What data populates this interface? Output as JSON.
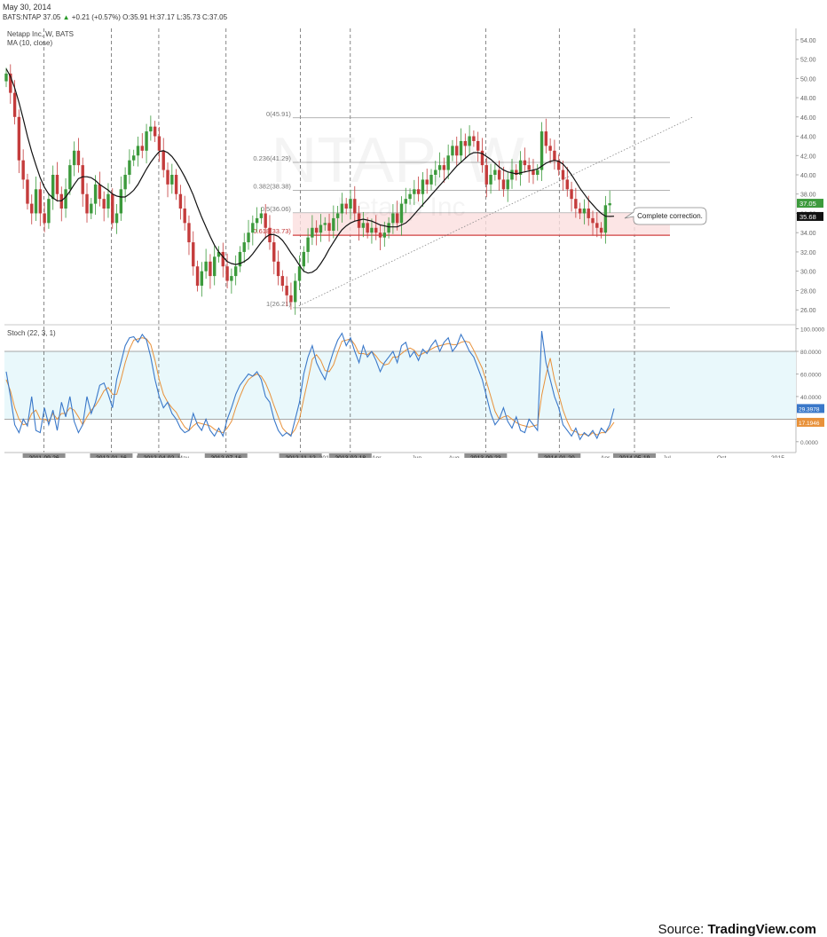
{
  "header": {
    "date": "May 30, 2014",
    "symbol": "BATS:NTAP",
    "price": "37.05",
    "change": "+0.21 (+0.57%)",
    "ohlc": "O:35.91 H:37.17 L:35.73 C:37.05"
  },
  "watermark": {
    "ticker": "NTAP, W",
    "name": "Netapp Inc"
  },
  "source": {
    "prefix": "Source: ",
    "brand": "TradingView.com"
  },
  "colors": {
    "up": "#3c9a3c",
    "down": "#c43c3c",
    "ma": "#111111",
    "stoch_k": "#3a78c9",
    "stoch_d": "#e8913a",
    "band": "#e9f8fb",
    "zone": "#fbdede"
  },
  "chart_data": [
    {
      "type": "candlestick",
      "title": "Netapp Inc, W, BATS",
      "indicator": "MA (10, close)",
      "ylim": [
        25,
        55
      ],
      "y_ticks": [
        "54.00",
        "52.00",
        "50.00",
        "48.00",
        "46.00",
        "44.00",
        "42.00",
        "40.00",
        "38.00",
        "36.00",
        "34.00",
        "32.00",
        "30.00",
        "28.00",
        "26.00"
      ],
      "last_price": "37.05",
      "ma_value": "35.68",
      "x_labels": [
        {
          "t": 0.05,
          "text": "2011-09-26",
          "box": true
        },
        {
          "t": 0.135,
          "text": "2012-01-16",
          "box": true
        },
        {
          "t": 0.172,
          "text": "Ma",
          "box": false
        },
        {
          "t": 0.195,
          "text": "2012-04-02",
          "box": true
        },
        {
          "t": 0.226,
          "text": "May",
          "box": false
        },
        {
          "t": 0.28,
          "text": "2012-07-16",
          "box": true
        },
        {
          "t": 0.374,
          "text": "2012-11-12",
          "box": true
        },
        {
          "t": 0.406,
          "text": "2013",
          "box": false
        },
        {
          "t": 0.437,
          "text": "2013-02-18",
          "box": true
        },
        {
          "t": 0.47,
          "text": "Apr",
          "box": false
        },
        {
          "t": 0.521,
          "text": "Jun",
          "box": false
        },
        {
          "t": 0.568,
          "text": "Aug",
          "box": false
        },
        {
          "t": 0.608,
          "text": "2013-09-23",
          "box": true
        },
        {
          "t": 0.701,
          "text": "2014-01-20",
          "box": true
        },
        {
          "t": 0.759,
          "text": "Apr",
          "box": false
        },
        {
          "t": 0.796,
          "text": "2014-05-19",
          "box": true
        },
        {
          "t": 0.837,
          "text": "Jul",
          "box": false
        },
        {
          "t": 0.906,
          "text": "Oct",
          "box": false
        },
        {
          "t": 0.977,
          "text": "2015",
          "box": false
        }
      ],
      "vlines_t": [
        0.05,
        0.135,
        0.195,
        0.28,
        0.374,
        0.437,
        0.608,
        0.701,
        0.796
      ],
      "fib_levels": [
        {
          "ratio": "0",
          "value": 45.91
        },
        {
          "ratio": "0.236",
          "value": 41.29
        },
        {
          "ratio": "0.382",
          "value": 38.38
        },
        {
          "ratio": "0.5",
          "value": 36.06
        },
        {
          "ratio": "0.618",
          "value": 33.73
        },
        {
          "ratio": "1",
          "value": 26.21
        }
      ],
      "trendline": {
        "from": [
          0.372,
          26.4
        ],
        "to": [
          0.87,
          46.0
        ]
      },
      "annotation": "Complete correction.",
      "closes": [
        50.5,
        48.5,
        46.0,
        41.5,
        39.5,
        37.0,
        36.0,
        38.5,
        36.0,
        35.0,
        37.5,
        40.0,
        38.0,
        36.5,
        38.5,
        41.0,
        42.5,
        41.0,
        38.0,
        36.0,
        37.0,
        39.0,
        37.5,
        36.5,
        38.0,
        35.0,
        36.0,
        38.5,
        40.0,
        41.5,
        42.0,
        43.0,
        42.5,
        44.5,
        45.0,
        44.0,
        42.5,
        40.5,
        39.0,
        40.0,
        38.0,
        36.5,
        35.0,
        33.0,
        30.5,
        28.5,
        30.0,
        31.0,
        29.5,
        31.5,
        32.0,
        30.5,
        29.0,
        29.5,
        30.5,
        32.0,
        33.0,
        34.0,
        35.0,
        35.5,
        36.0,
        34.5,
        33.0,
        31.0,
        29.5,
        28.5,
        27.5,
        26.8,
        29.0,
        30.5,
        32.0,
        33.5,
        34.5,
        34.0,
        34.8,
        35.0,
        34.2,
        35.5,
        36.0,
        37.0,
        36.5,
        37.5,
        36.0,
        34.5,
        35.0,
        34.0,
        34.5,
        34.0,
        33.5,
        34.0,
        35.0,
        36.0,
        35.0,
        37.0,
        37.5,
        38.0,
        38.5,
        38.0,
        39.5,
        39.0,
        40.0,
        40.5,
        41.0,
        40.5,
        42.0,
        43.0,
        42.0,
        43.5,
        43.0,
        44.0,
        43.5,
        42.5,
        41.0,
        39.0,
        40.0,
        40.5,
        39.5,
        38.5,
        39.5,
        40.5,
        40.0,
        41.5,
        41.0,
        40.5,
        40.0,
        40.5,
        44.5,
        43.0,
        42.5,
        41.5,
        40.5,
        39.5,
        38.5,
        37.5,
        36.5,
        36.0,
        36.5,
        35.5,
        35.0,
        34.5,
        34.0,
        36.84,
        37.05
      ],
      "ma10": [
        51.0,
        50.2,
        49.0,
        47.5,
        45.8,
        44.0,
        42.4,
        41.0,
        39.7,
        38.7,
        38.0,
        37.6,
        37.3,
        37.3,
        37.7,
        38.3,
        39.0,
        39.6,
        39.8,
        39.8,
        39.7,
        39.4,
        39.0,
        38.7,
        38.4,
        38.0,
        37.8,
        37.7,
        37.7,
        38.0,
        38.4,
        39.0,
        39.8,
        40.6,
        41.3,
        41.9,
        42.4,
        42.5,
        42.3,
        41.9,
        41.3,
        40.6,
        39.8,
        38.9,
        37.9,
        36.7,
        35.6,
        34.6,
        33.6,
        32.7,
        32.0,
        31.5,
        31.0,
        30.8,
        30.7,
        30.8,
        31.0,
        31.3,
        31.8,
        32.4,
        33.0,
        33.5,
        33.8,
        33.8,
        33.6,
        33.2,
        32.6,
        31.9,
        31.3,
        30.6,
        30.0,
        29.8,
        29.9,
        30.2,
        30.8,
        31.5,
        32.3,
        33.0,
        33.7,
        34.3,
        34.7,
        35.0,
        35.2,
        35.3,
        35.4,
        35.3,
        35.2,
        35.0,
        34.8,
        34.7,
        34.6,
        34.6,
        34.6,
        34.8,
        35.0,
        35.4,
        35.9,
        36.4,
        36.9,
        37.4,
        37.9,
        38.4,
        38.9,
        39.4,
        39.9,
        40.4,
        40.9,
        41.3,
        41.7,
        42.1,
        42.3,
        42.3,
        42.2,
        41.9,
        41.6,
        41.2,
        40.8,
        40.5,
        40.3,
        40.2,
        40.1,
        40.2,
        40.3,
        40.4,
        40.5,
        40.6,
        40.9,
        41.2,
        41.4,
        41.5,
        41.4,
        41.1,
        40.6,
        40.0,
        39.3,
        38.6,
        38.0,
        37.4,
        36.9,
        36.4,
        36.0,
        35.7,
        35.68,
        35.7
      ]
    },
    {
      "type": "line",
      "title": "Stoch (22, 3, 1)",
      "ylim": [
        -8,
        102
      ],
      "y_ticks": [
        "100.0000",
        "80.0000",
        "60.0000",
        "40.0000",
        "20.0000",
        "0.0000"
      ],
      "band": [
        20,
        80
      ],
      "k_last": "29.3978",
      "d_last": "17.1946",
      "series": [
        {
          "name": "%K",
          "values": [
            62,
            40,
            15,
            8,
            20,
            14,
            40,
            10,
            8,
            30,
            15,
            28,
            10,
            35,
            22,
            40,
            18,
            8,
            15,
            40,
            25,
            35,
            50,
            52,
            42,
            30,
            55,
            70,
            85,
            92,
            93,
            88,
            95,
            90,
            75,
            55,
            40,
            30,
            35,
            25,
            20,
            12,
            8,
            10,
            25,
            15,
            10,
            20,
            10,
            5,
            12,
            5,
            20,
            30,
            42,
            50,
            55,
            60,
            58,
            62,
            55,
            40,
            35,
            20,
            10,
            5,
            8,
            5,
            20,
            35,
            60,
            75,
            85,
            70,
            62,
            55,
            68,
            80,
            90,
            96,
            85,
            92,
            80,
            70,
            85,
            75,
            80,
            72,
            62,
            70,
            75,
            80,
            70,
            85,
            88,
            75,
            80,
            72,
            82,
            78,
            85,
            90,
            80,
            88,
            92,
            80,
            85,
            95,
            88,
            80,
            75,
            65,
            55,
            40,
            25,
            15,
            20,
            30,
            18,
            12,
            22,
            10,
            8,
            20,
            15,
            10,
            98,
            70,
            55,
            40,
            30,
            15,
            10,
            5,
            12,
            2,
            8,
            5,
            10,
            3,
            12,
            8,
            15,
            29.4
          ]
        },
        {
          "name": "%D",
          "values": [
            55,
            45,
            30,
            20,
            15,
            16,
            25,
            28,
            20,
            20,
            18,
            25,
            20,
            25,
            25,
            30,
            28,
            22,
            15,
            22,
            28,
            32,
            38,
            45,
            48,
            42,
            42,
            55,
            70,
            82,
            90,
            91,
            92,
            91,
            86,
            72,
            55,
            42,
            35,
            30,
            26,
            19,
            13,
            10,
            14,
            17,
            16,
            15,
            14,
            11,
            9,
            8,
            12,
            18,
            30,
            40,
            49,
            55,
            58,
            60,
            58,
            52,
            43,
            32,
            22,
            12,
            8,
            6,
            11,
            20,
            38,
            55,
            73,
            77,
            72,
            63,
            62,
            68,
            79,
            89,
            90,
            91,
            86,
            78,
            78,
            77,
            80,
            76,
            71,
            68,
            69,
            75,
            75,
            78,
            81,
            83,
            81,
            76,
            78,
            80,
            82,
            84,
            85,
            86,
            87,
            86,
            86,
            88,
            89,
            88,
            81,
            73,
            65,
            53,
            40,
            27,
            20,
            22,
            23,
            20,
            17,
            15,
            14,
            13,
            14,
            15,
            41,
            59,
            74,
            55,
            42,
            28,
            18,
            10,
            9,
            6,
            7,
            5,
            8,
            6,
            8,
            8,
            12,
            17.2
          ]
        }
      ]
    }
  ]
}
